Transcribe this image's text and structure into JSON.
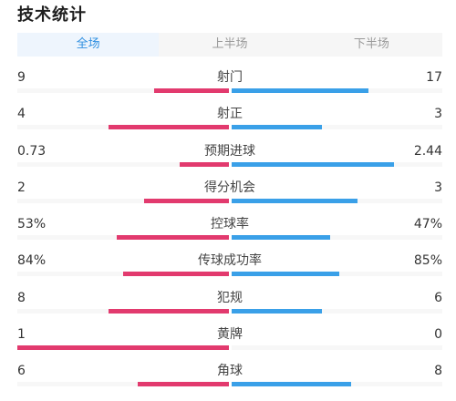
{
  "title": "技术统计",
  "tabs": [
    {
      "label": "全场",
      "active": true
    },
    {
      "label": "上半场",
      "active": false
    },
    {
      "label": "下半场",
      "active": false
    }
  ],
  "colors": {
    "home": "#e23a6e",
    "away": "#3aa0e8",
    "active_tab": "#2f8fe0"
  },
  "stats": [
    {
      "label": "射门",
      "home": "9",
      "away": "17",
      "home_share": 0.35,
      "away_share": 0.65
    },
    {
      "label": "射正",
      "home": "4",
      "away": "3",
      "home_share": 0.57,
      "away_share": 0.43
    },
    {
      "label": "预期进球",
      "home": "0.73",
      "away": "2.44",
      "home_share": 0.23,
      "away_share": 0.77
    },
    {
      "label": "得分机会",
      "home": "2",
      "away": "3",
      "home_share": 0.4,
      "away_share": 0.6
    },
    {
      "label": "控球率",
      "home": "53%",
      "away": "47%",
      "home_share": 0.53,
      "away_share": 0.47
    },
    {
      "label": "传球成功率",
      "home": "84%",
      "away": "85%",
      "home_share": 0.5,
      "away_share": 0.51
    },
    {
      "label": "犯规",
      "home": "8",
      "away": "6",
      "home_share": 0.57,
      "away_share": 0.43
    },
    {
      "label": "黄牌",
      "home": "1",
      "away": "0",
      "home_share": 1.0,
      "away_share": 0.0
    },
    {
      "label": "角球",
      "home": "6",
      "away": "8",
      "home_share": 0.43,
      "away_share": 0.57
    }
  ]
}
